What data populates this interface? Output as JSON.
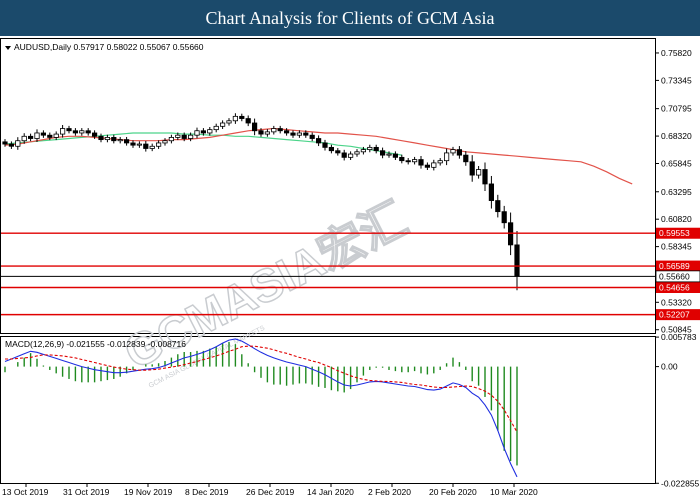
{
  "banner": {
    "title": "Chart Analysis for Clients of GCM Asia"
  },
  "watermark": {
    "brand": "GCMASIA宏汇",
    "tagline": "GCM ASIA GLOBAL CAPITAL MARKETS"
  },
  "colors": {
    "banner_bg": "#1b4a6b",
    "candle": "#000000",
    "ma_fast": "#e2534a",
    "ma_slow": "#4cd48a",
    "level_line": "#e00000",
    "price_line": "#000000",
    "macd_line": "#1f2ee0",
    "signal_line": "#e00000",
    "histogram": "#1f8a1f"
  },
  "chart_data": [
    {
      "type": "candlestick",
      "legend": "AUDUSD,Daily  0.57917 0.58022 0.55067 0.55660",
      "ylim": [
        0.5055,
        0.7708
      ],
      "y_ticks": [
        "0.75820",
        "0.73345",
        "0.70795",
        "0.68320",
        "0.65845",
        "0.63295",
        "0.60820",
        "0.58345",
        "0.55870",
        "0.53320",
        "0.50845"
      ],
      "x_tick_labels": [
        "13 Oct 2019",
        "31 Oct 2019",
        "19 Nov 2019",
        "8 Dec 2019",
        "26 Dec 2019",
        "14 Jan 2020",
        "2 Feb 2020",
        "20 Feb 2020",
        "10 Mar 2020"
      ],
      "closes": [
        0.676,
        0.674,
        0.679,
        0.683,
        0.681,
        0.686,
        0.684,
        0.682,
        0.685,
        0.69,
        0.688,
        0.686,
        0.688,
        0.686,
        0.683,
        0.68,
        0.682,
        0.679,
        0.68,
        0.677,
        0.675,
        0.676,
        0.672,
        0.674,
        0.677,
        0.679,
        0.682,
        0.684,
        0.681,
        0.684,
        0.688,
        0.686,
        0.689,
        0.692,
        0.695,
        0.697,
        0.701,
        0.699,
        0.695,
        0.688,
        0.685,
        0.687,
        0.69,
        0.688,
        0.686,
        0.684,
        0.686,
        0.684,
        0.681,
        0.677,
        0.673,
        0.67,
        0.668,
        0.664,
        0.667,
        0.669,
        0.671,
        0.673,
        0.67,
        0.666,
        0.667,
        0.664,
        0.661,
        0.66,
        0.662,
        0.657,
        0.655,
        0.659,
        0.661,
        0.668,
        0.671,
        0.666,
        0.66,
        0.648,
        0.653,
        0.64,
        0.625,
        0.615,
        0.605,
        0.585,
        0.5566
      ],
      "ma_fast": [
        0.675,
        0.676,
        0.678,
        0.68,
        0.682,
        0.683,
        0.683,
        0.682,
        0.681,
        0.68,
        0.679,
        0.679,
        0.679,
        0.68,
        0.68,
        0.681,
        0.682,
        0.684,
        0.686,
        0.688,
        0.689,
        0.69,
        0.689,
        0.688,
        0.687,
        0.686,
        0.686,
        0.685,
        0.684,
        0.683,
        0.681,
        0.679,
        0.677,
        0.675,
        0.673,
        0.671,
        0.669,
        0.668,
        0.667,
        0.666,
        0.665,
        0.664,
        0.663,
        0.662,
        0.661,
        0.66,
        0.656,
        0.651,
        0.645,
        0.64
      ],
      "ma_slow": [
        0.676,
        0.677,
        0.678,
        0.679,
        0.68,
        0.681,
        0.682,
        0.683,
        0.684,
        0.685,
        0.686,
        0.686,
        0.686,
        0.686,
        0.685,
        0.685,
        0.684,
        0.684,
        0.683,
        0.683,
        0.682,
        0.681,
        0.68,
        0.679,
        0.678,
        0.677,
        0.675,
        0.674,
        0.672,
        0.67,
        0.668,
        0.666
      ],
      "levels": [
        {
          "value": 0.59553,
          "label": "0.59553"
        },
        {
          "value": 0.56589,
          "label": "0.56589"
        },
        {
          "value": 0.54656,
          "label": "0.54656"
        },
        {
          "value": 0.52207,
          "label": "0.52207"
        }
      ],
      "current_price": {
        "value": 0.5566,
        "label": "0.55660"
      }
    },
    {
      "type": "macd",
      "legend": "MACD(12,26,9) -0.021555 -0.012839 -0.008716",
      "ylim": [
        -0.0228,
        0.0058
      ],
      "y_ticks": [
        "0.005783",
        "0.00",
        "-0.022855"
      ],
      "macd": [
        0.001,
        0.0015,
        0.002,
        0.0025,
        0.003,
        0.0028,
        0.0024,
        0.002,
        0.0016,
        0.0012,
        0.0008,
        0.0004,
        0.0,
        -0.0003,
        -0.0006,
        -0.0008,
        -0.001,
        -0.0012,
        -0.0012,
        -0.0011,
        -0.0009,
        -0.0007,
        -0.0005,
        -0.0004,
        -0.0002,
        0.0002,
        0.0007,
        0.0012,
        0.0017,
        0.002,
        0.0024,
        0.0028,
        0.0033,
        0.0039,
        0.0046,
        0.0052,
        0.0054,
        0.005,
        0.0043,
        0.0035,
        0.0028,
        0.0022,
        0.0017,
        0.0013,
        0.0009,
        0.0006,
        0.0003,
        0.0,
        -0.0005,
        -0.001,
        -0.0016,
        -0.0023,
        -0.003,
        -0.0036,
        -0.0038,
        -0.0036,
        -0.0033,
        -0.003,
        -0.0029,
        -0.003,
        -0.0032,
        -0.0034,
        -0.0036,
        -0.0038,
        -0.0039,
        -0.0042,
        -0.0045,
        -0.0046,
        -0.0044,
        -0.0038,
        -0.0032,
        -0.0035,
        -0.0041,
        -0.0052,
        -0.006,
        -0.0075,
        -0.0095,
        -0.0125,
        -0.016,
        -0.019,
        -0.0216
      ],
      "signal": [
        0.0015,
        0.0015,
        0.0016,
        0.0017,
        0.0018,
        0.0021,
        0.0023,
        0.0023,
        0.0022,
        0.0021,
        0.0019,
        0.0017,
        0.0014,
        0.0011,
        0.0008,
        0.0005,
        0.0002,
        -0.0001,
        -0.0003,
        -0.0005,
        -0.0006,
        -0.0007,
        -0.0007,
        -0.0006,
        -0.0005,
        -0.0003,
        -0.0001,
        0.0001,
        0.0004,
        0.0007,
        0.001,
        0.0014,
        0.0017,
        0.0021,
        0.0025,
        0.003,
        0.0034,
        0.0039,
        0.004,
        0.004,
        0.0038,
        0.0036,
        0.0033,
        0.0029,
        0.0026,
        0.0022,
        0.0018,
        0.0015,
        0.0011,
        0.0008,
        0.0003,
        -0.0002,
        -0.0008,
        -0.0013,
        -0.0018,
        -0.0022,
        -0.0025,
        -0.0027,
        -0.0028,
        -0.0029,
        -0.0029,
        -0.003,
        -0.0031,
        -0.0033,
        -0.0035,
        -0.0036,
        -0.0038,
        -0.004,
        -0.0041,
        -0.0041,
        -0.004,
        -0.0039,
        -0.0038,
        -0.0039,
        -0.0043,
        -0.0048,
        -0.0056,
        -0.0068,
        -0.0085,
        -0.0106,
        -0.0128
      ]
    }
  ]
}
